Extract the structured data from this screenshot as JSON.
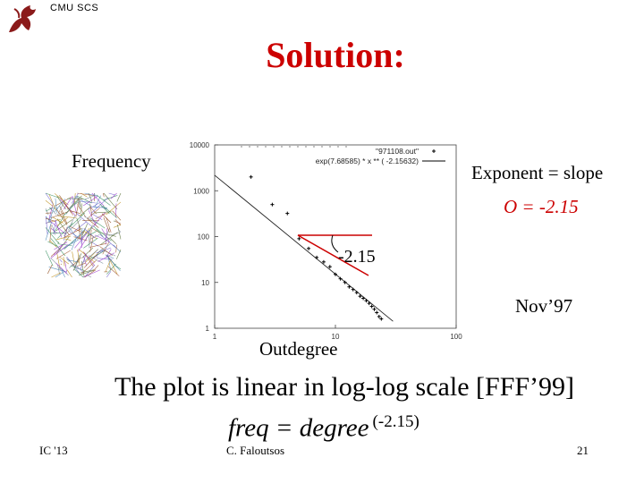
{
  "header": {
    "org": "CMU SCS",
    "logo_icon": "griffin-icon"
  },
  "title": "Solution:",
  "labels": {
    "frequency": "Frequency",
    "exponent": "Exponent = slope",
    "slope_value": "O = -2.15",
    "date": "Nov’97",
    "xlabel": "Outdegree"
  },
  "statement": "The plot is linear in log-log scale [FFF’99]",
  "formula": {
    "main": "freq = degree",
    "exponent": "(-2.15)"
  },
  "footer": {
    "left": "IC '13",
    "center": "C. Faloutsos",
    "right": "21"
  },
  "colors": {
    "title": "#cc0000",
    "slope_triangle": "#cc0000",
    "slope_value": "#cc0000"
  },
  "chart_data": {
    "type": "scatter",
    "x_scale": "log",
    "y_scale": "log",
    "xlim": [
      1,
      100
    ],
    "ylim": [
      1,
      10000
    ],
    "x_ticks": [
      "1",
      "10",
      "100"
    ],
    "y_ticks": [
      "10000",
      "1000",
      "100",
      "10",
      "1"
    ],
    "legend": [
      {
        "text": "\"971108.out\"",
        "style": "points"
      },
      {
        "text": "exp(7.68585) * x ** ( -2.15632)",
        "style": "line"
      }
    ],
    "legend_position": "top-right",
    "annotation": "-2.15",
    "series": [
      {
        "style": "points",
        "x": [
          2,
          3,
          4,
          5,
          6,
          7,
          8,
          9,
          10,
          11,
          12,
          13,
          14,
          15,
          16,
          17,
          18,
          19,
          20,
          21,
          22,
          23,
          24
        ],
        "y": [
          2000,
          500,
          320,
          90,
          55,
          35,
          28,
          22,
          15,
          12,
          10,
          8,
          7,
          6,
          5,
          4.5,
          4,
          3.5,
          3,
          2.6,
          2.2,
          1.8,
          1.6
        ]
      },
      {
        "style": "line",
        "fit": {
          "a": 2178,
          "b": -2.15632
        },
        "x": [
          1,
          30
        ]
      }
    ]
  }
}
